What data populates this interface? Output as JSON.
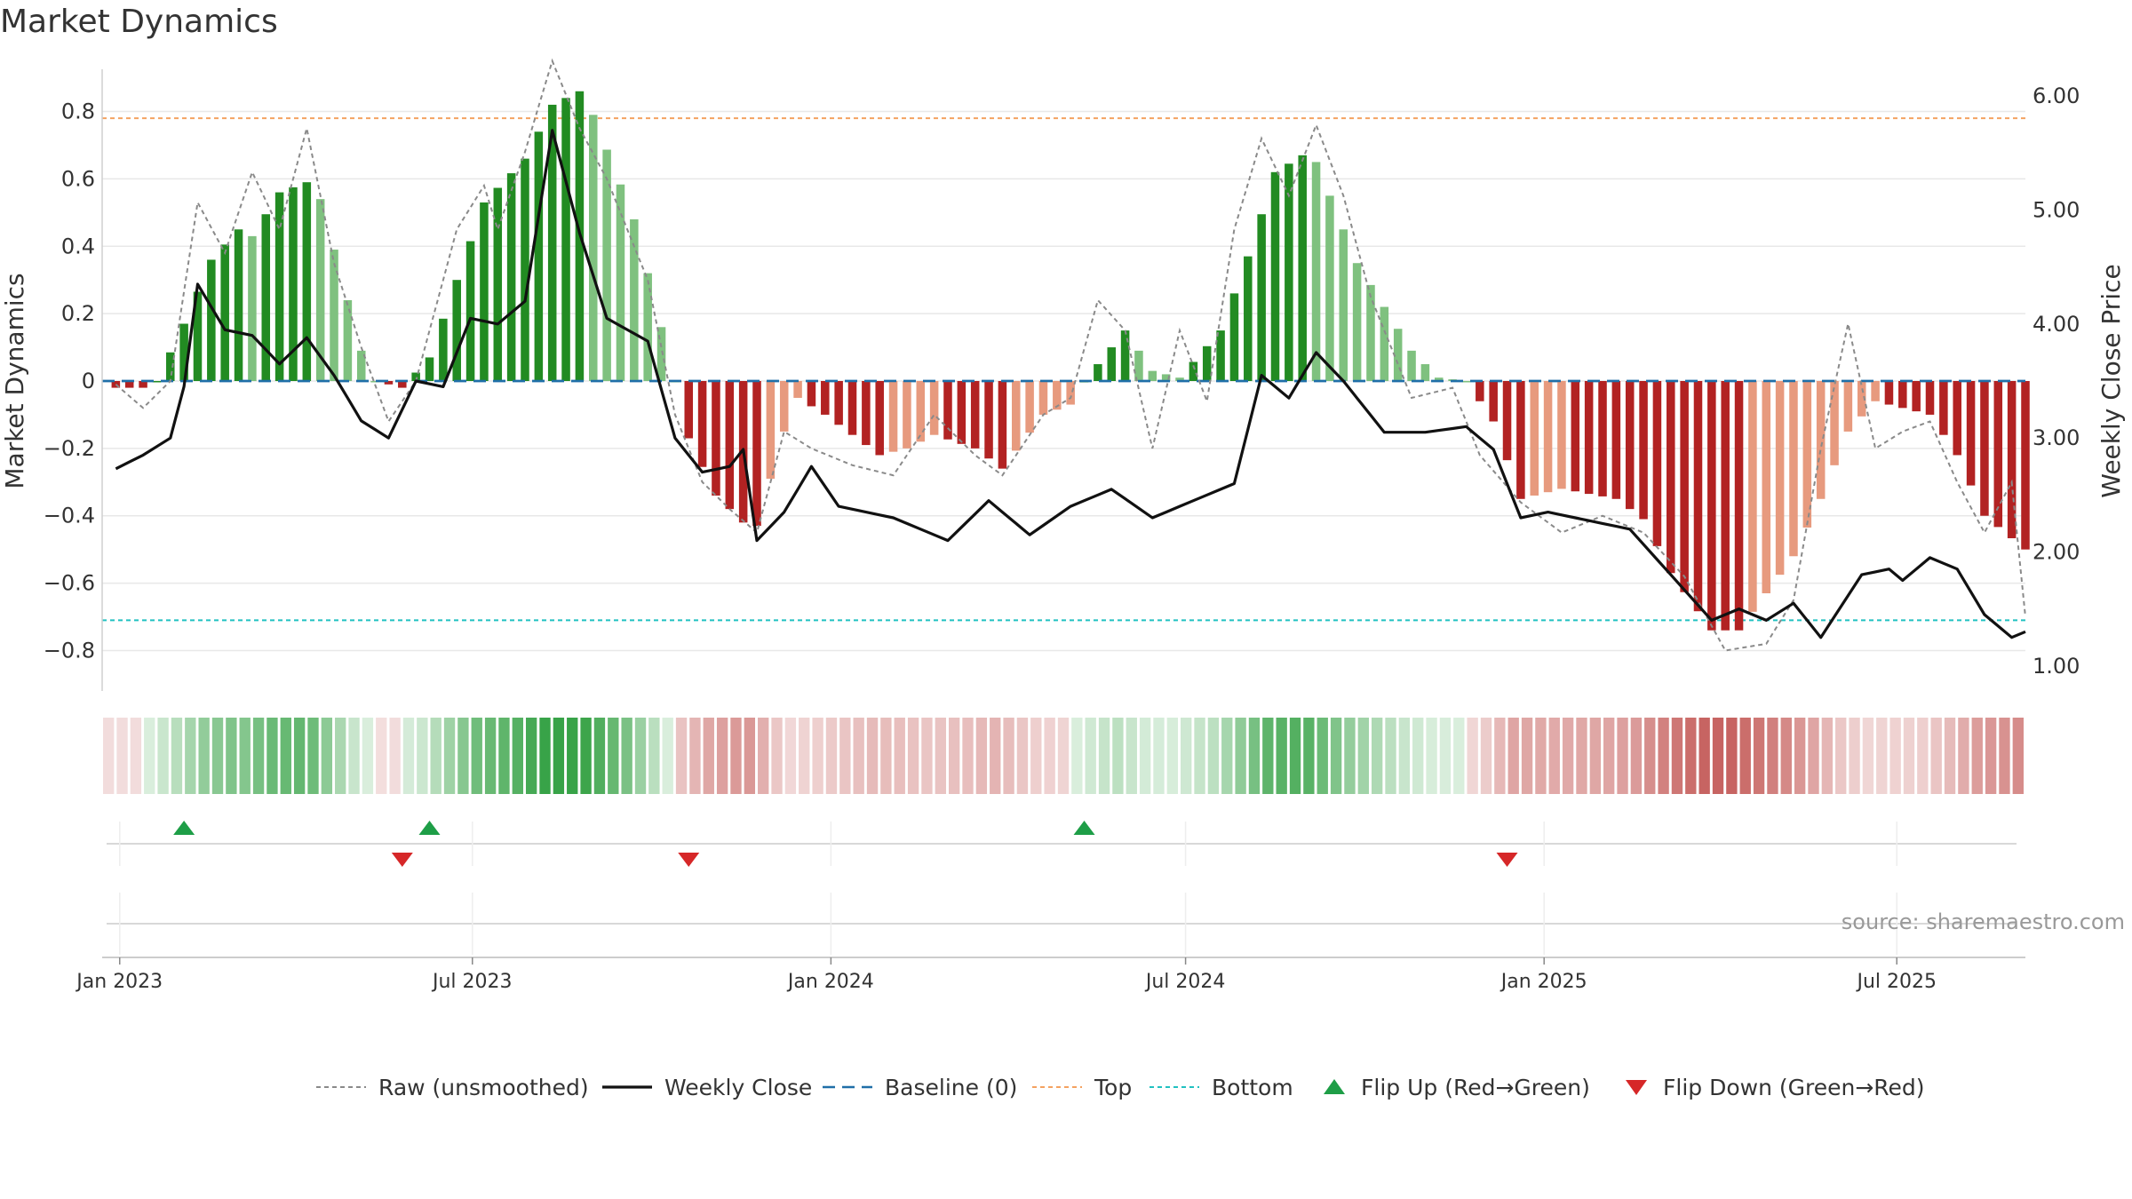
{
  "title": "Market Dynamics",
  "source_text": "source: sharemaestro.com",
  "colors": {
    "green_strong": "#228b22",
    "green_light": "#7fc17f",
    "red_strong": "#b22222",
    "red_light": "#e79a7e",
    "raw_line": "#8a8a8a",
    "close_line": "#111111",
    "baseline": "#1f6fa8",
    "top_line": "#f4a261",
    "bottom_line": "#21c1c1",
    "flip_up": "#1e9e47",
    "flip_down": "#d62728",
    "grid": "#e8e8e8",
    "text": "#333333"
  },
  "chart_data": {
    "type": "bar",
    "title": "Market Dynamics",
    "x_axis": {
      "type": "date",
      "range": [
        "2022-12-23",
        "2025-09-05"
      ],
      "tick_dates": [
        "2023-01-01",
        "2023-07-01",
        "2024-01-01",
        "2024-07-01",
        "2025-01-01",
        "2025-07-01"
      ],
      "tick_labels": [
        "Jan 2023",
        "Jul 2023",
        "Jan 2024",
        "Jul 2024",
        "Jan 2025",
        "Jul 2025"
      ]
    },
    "y_left": {
      "label": "Market Dynamics",
      "range": [
        -0.92,
        0.92
      ],
      "ticks": [
        0.8,
        0.6,
        0.4,
        0.2,
        0,
        -0.2,
        -0.4,
        -0.6,
        -0.8
      ],
      "tick_labels": [
        "0.8",
        "0.6",
        "0.4",
        "0.2",
        "0",
        "−0.2",
        "−0.4",
        "−0.6",
        "−0.8"
      ]
    },
    "y_right": {
      "label": "Weekly Close Price",
      "range": [
        1.0,
        6.0
      ],
      "ticks": [
        6.0,
        5.0,
        4.0,
        3.0,
        2.0,
        1.0
      ],
      "tick_labels": [
        "6.00",
        "5.00",
        "4.00",
        "3.00",
        "2.00",
        "1.00"
      ]
    },
    "reference_lines": {
      "baseline": 0,
      "top": 0.78,
      "bottom": -0.71
    },
    "anchors": {
      "dynamics": [
        [
          "2022-12-30",
          -0.02
        ],
        [
          "2023-01-13",
          -0.02
        ],
        [
          "2023-01-20",
          0.0
        ],
        [
          "2023-02-03",
          0.17
        ],
        [
          "2023-02-17",
          0.36
        ],
        [
          "2023-03-03",
          0.45
        ],
        [
          "2023-03-10",
          0.43
        ],
        [
          "2023-03-24",
          0.56
        ],
        [
          "2023-04-07",
          0.59
        ],
        [
          "2023-04-14",
          0.54
        ],
        [
          "2023-04-21",
          0.39
        ],
        [
          "2023-05-05",
          0.09
        ],
        [
          "2023-05-12",
          0.0
        ],
        [
          "2023-05-26",
          -0.02
        ],
        [
          "2023-06-09",
          0.07
        ],
        [
          "2023-06-23",
          0.3
        ],
        [
          "2023-07-07",
          0.53
        ],
        [
          "2023-07-28",
          0.66
        ],
        [
          "2023-08-11",
          0.82
        ],
        [
          "2023-08-25",
          0.86
        ],
        [
          "2023-09-01",
          0.79
        ],
        [
          "2023-09-22",
          0.48
        ],
        [
          "2023-10-06",
          0.16
        ],
        [
          "2023-10-13",
          0.0
        ],
        [
          "2023-10-20",
          -0.17
        ],
        [
          "2023-11-03",
          -0.34
        ],
        [
          "2023-11-17",
          -0.42
        ],
        [
          "2023-11-24",
          -0.43
        ],
        [
          "2023-12-08",
          -0.15
        ],
        [
          "2023-12-15",
          -0.05
        ],
        [
          "2023-12-29",
          -0.1
        ],
        [
          "2024-01-26",
          -0.22
        ],
        [
          "2024-02-09",
          -0.2
        ],
        [
          "2024-02-23",
          -0.16
        ],
        [
          "2024-03-15",
          -0.2
        ],
        [
          "2024-03-29",
          -0.26
        ],
        [
          "2024-04-19",
          -0.1
        ],
        [
          "2024-05-03",
          -0.07
        ],
        [
          "2024-05-10",
          0.0
        ],
        [
          "2024-05-24",
          0.1
        ],
        [
          "2024-05-31",
          0.15
        ],
        [
          "2024-06-14",
          0.03
        ],
        [
          "2024-06-28",
          0.01
        ],
        [
          "2024-07-19",
          0.15
        ],
        [
          "2024-08-02",
          0.37
        ],
        [
          "2024-08-16",
          0.62
        ],
        [
          "2024-08-30",
          0.67
        ],
        [
          "2024-09-06",
          0.65
        ],
        [
          "2024-09-27",
          0.35
        ],
        [
          "2024-10-25",
          0.09
        ],
        [
          "2024-11-08",
          0.01
        ],
        [
          "2024-11-22",
          0.0
        ],
        [
          "2024-12-06",
          -0.12
        ],
        [
          "2024-12-20",
          -0.35
        ],
        [
          "2025-01-10",
          -0.32
        ],
        [
          "2025-02-07",
          -0.35
        ],
        [
          "2025-02-21",
          -0.41
        ],
        [
          "2025-03-07",
          -0.57
        ],
        [
          "2025-03-28",
          -0.74
        ],
        [
          "2025-04-11",
          -0.74
        ],
        [
          "2025-04-25",
          -0.63
        ],
        [
          "2025-05-09",
          -0.52
        ],
        [
          "2025-05-23",
          -0.35
        ],
        [
          "2025-06-06",
          -0.15
        ],
        [
          "2025-06-20",
          -0.06
        ],
        [
          "2025-07-04",
          -0.08
        ],
        [
          "2025-07-18",
          -0.1
        ],
        [
          "2025-08-01",
          -0.22
        ],
        [
          "2025-08-15",
          -0.4
        ],
        [
          "2025-09-05",
          -0.5
        ]
      ],
      "raw_dynamics": [
        [
          "2022-12-30",
          -0.01
        ],
        [
          "2023-01-13",
          -0.08
        ],
        [
          "2023-01-27",
          0.0
        ],
        [
          "2023-02-10",
          0.53
        ],
        [
          "2023-02-24",
          0.38
        ],
        [
          "2023-03-10",
          0.62
        ],
        [
          "2023-03-24",
          0.45
        ],
        [
          "2023-04-07",
          0.75
        ],
        [
          "2023-04-21",
          0.35
        ],
        [
          "2023-05-05",
          0.1
        ],
        [
          "2023-05-19",
          -0.12
        ],
        [
          "2023-06-02",
          0.0
        ],
        [
          "2023-06-23",
          0.45
        ],
        [
          "2023-07-07",
          0.58
        ],
        [
          "2023-07-14",
          0.45
        ],
        [
          "2023-07-28",
          0.68
        ],
        [
          "2023-08-11",
          0.95
        ],
        [
          "2023-08-25",
          0.75
        ],
        [
          "2023-09-08",
          0.6
        ],
        [
          "2023-09-29",
          0.3
        ],
        [
          "2023-10-13",
          -0.1
        ],
        [
          "2023-10-27",
          -0.3
        ],
        [
          "2023-11-10",
          -0.38
        ],
        [
          "2023-11-24",
          -0.45
        ],
        [
          "2023-12-08",
          -0.15
        ],
        [
          "2023-12-22",
          -0.2
        ],
        [
          "2024-01-12",
          -0.25
        ],
        [
          "2024-02-02",
          -0.28
        ],
        [
          "2024-02-23",
          -0.1
        ],
        [
          "2024-03-15",
          -0.22
        ],
        [
          "2024-03-29",
          -0.28
        ],
        [
          "2024-04-19",
          -0.1
        ],
        [
          "2024-05-03",
          -0.05
        ],
        [
          "2024-05-17",
          0.24
        ],
        [
          "2024-05-31",
          0.15
        ],
        [
          "2024-06-14",
          -0.2
        ],
        [
          "2024-06-28",
          0.15
        ],
        [
          "2024-07-12",
          -0.06
        ],
        [
          "2024-07-26",
          0.45
        ],
        [
          "2024-08-09",
          0.72
        ],
        [
          "2024-08-23",
          0.55
        ],
        [
          "2024-09-06",
          0.76
        ],
        [
          "2024-09-20",
          0.55
        ],
        [
          "2024-10-04",
          0.25
        ],
        [
          "2024-10-25",
          -0.05
        ],
        [
          "2024-11-15",
          -0.02
        ],
        [
          "2024-11-29",
          -0.22
        ],
        [
          "2024-12-20",
          -0.36
        ],
        [
          "2025-01-10",
          -0.45
        ],
        [
          "2025-01-31",
          -0.4
        ],
        [
          "2025-02-21",
          -0.45
        ],
        [
          "2025-03-14",
          -0.58
        ],
        [
          "2025-04-04",
          -0.8
        ],
        [
          "2025-04-25",
          -0.78
        ],
        [
          "2025-05-09",
          -0.65
        ],
        [
          "2025-05-23",
          -0.2
        ],
        [
          "2025-06-06",
          0.17
        ],
        [
          "2025-06-20",
          -0.2
        ],
        [
          "2025-07-04",
          -0.15
        ],
        [
          "2025-07-18",
          -0.12
        ],
        [
          "2025-08-01",
          -0.3
        ],
        [
          "2025-08-15",
          -0.45
        ],
        [
          "2025-08-29",
          -0.3
        ],
        [
          "2025-09-05",
          -0.7
        ]
      ],
      "weekly_close": [
        [
          "2022-12-30",
          2.73
        ],
        [
          "2023-01-13",
          2.85
        ],
        [
          "2023-01-27",
          3.0
        ],
        [
          "2023-02-03",
          3.45
        ],
        [
          "2023-02-10",
          4.35
        ],
        [
          "2023-02-24",
          3.95
        ],
        [
          "2023-03-10",
          3.9
        ],
        [
          "2023-03-24",
          3.65
        ],
        [
          "2023-04-07",
          3.88
        ],
        [
          "2023-04-21",
          3.55
        ],
        [
          "2023-05-05",
          3.15
        ],
        [
          "2023-05-19",
          3.0
        ],
        [
          "2023-06-02",
          3.5
        ],
        [
          "2023-06-16",
          3.45
        ],
        [
          "2023-06-30",
          4.05
        ],
        [
          "2023-07-14",
          4.0
        ],
        [
          "2023-07-28",
          4.2
        ],
        [
          "2023-08-11",
          5.7
        ],
        [
          "2023-08-25",
          4.8
        ],
        [
          "2023-09-08",
          4.05
        ],
        [
          "2023-09-29",
          3.85
        ],
        [
          "2023-10-13",
          3.0
        ],
        [
          "2023-10-27",
          2.7
        ],
        [
          "2023-11-10",
          2.75
        ],
        [
          "2023-11-17",
          2.9
        ],
        [
          "2023-11-24",
          2.1
        ],
        [
          "2023-12-08",
          2.35
        ],
        [
          "2023-12-22",
          2.75
        ],
        [
          "2024-01-05",
          2.4
        ],
        [
          "2024-02-02",
          2.3
        ],
        [
          "2024-03-01",
          2.1
        ],
        [
          "2024-03-22",
          2.45
        ],
        [
          "2024-04-12",
          2.15
        ],
        [
          "2024-05-03",
          2.4
        ],
        [
          "2024-05-24",
          2.55
        ],
        [
          "2024-06-14",
          2.3
        ],
        [
          "2024-07-05",
          2.45
        ],
        [
          "2024-07-26",
          2.6
        ],
        [
          "2024-08-09",
          3.55
        ],
        [
          "2024-08-23",
          3.35
        ],
        [
          "2024-09-06",
          3.75
        ],
        [
          "2024-09-20",
          3.5
        ],
        [
          "2024-10-11",
          3.05
        ],
        [
          "2024-11-01",
          3.05
        ],
        [
          "2024-11-22",
          3.1
        ],
        [
          "2024-12-06",
          2.9
        ],
        [
          "2024-12-20",
          2.3
        ],
        [
          "2025-01-03",
          2.35
        ],
        [
          "2025-01-17",
          2.3
        ],
        [
          "2025-02-14",
          2.2
        ],
        [
          "2025-03-07",
          1.8
        ],
        [
          "2025-03-28",
          1.4
        ],
        [
          "2025-04-11",
          1.5
        ],
        [
          "2025-04-25",
          1.4
        ],
        [
          "2025-05-09",
          1.55
        ],
        [
          "2025-05-23",
          1.25
        ],
        [
          "2025-06-13",
          1.8
        ],
        [
          "2025-06-27",
          1.85
        ],
        [
          "2025-07-04",
          1.75
        ],
        [
          "2025-07-18",
          1.95
        ],
        [
          "2025-08-01",
          1.85
        ],
        [
          "2025-08-15",
          1.45
        ],
        [
          "2025-08-29",
          1.25
        ],
        [
          "2025-09-05",
          1.3
        ]
      ]
    },
    "flip_up_dates": [
      "2023-02-03",
      "2023-06-09",
      "2024-05-10"
    ],
    "flip_down_dates": [
      "2023-05-26",
      "2023-10-20",
      "2024-12-13"
    ],
    "legend": {
      "position": "bottom-center",
      "entries": [
        {
          "key": "raw",
          "label": "Raw (unsmoothed)"
        },
        {
          "key": "close",
          "label": "Weekly Close"
        },
        {
          "key": "baseline",
          "label": "Baseline (0)"
        },
        {
          "key": "top",
          "label": "Top"
        },
        {
          "key": "bottom",
          "label": "Bottom"
        },
        {
          "key": "flip_up",
          "label": "Flip Up (Red→Green)"
        },
        {
          "key": "flip_down",
          "label": "Flip Down (Green→Red)"
        }
      ]
    }
  }
}
